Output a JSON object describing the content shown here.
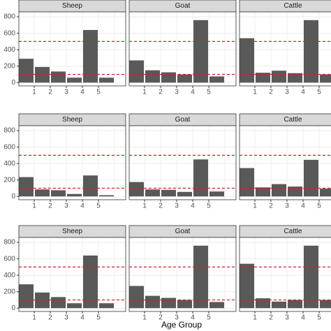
{
  "xlabel": "Age Group",
  "chart_data": [
    {
      "type": "bar",
      "title": "Sheep",
      "categories": [
        null,
        "1",
        "2",
        "3",
        "4",
        "5"
      ],
      "values": [
        290,
        190,
        135,
        60,
        640,
        60
      ],
      "color": "#595959",
      "ylim": [
        -40,
        860
      ],
      "yticks": [
        0,
        200,
        400,
        600,
        800
      ],
      "reference_lines": [
        100,
        500
      ],
      "reference_color": "#e41a1c",
      "grid": true
    },
    {
      "type": "bar",
      "title": "Goat",
      "categories": [
        null,
        "1",
        "2",
        "3",
        "4",
        "5"
      ],
      "values": [
        270,
        150,
        125,
        100,
        760,
        75
      ],
      "color": "#595959",
      "ylim": [
        -40,
        860
      ],
      "yticks": [
        0,
        200,
        400,
        600,
        800
      ],
      "reference_lines": [
        100,
        500
      ],
      "reference_color": "#e41a1c",
      "grid": true
    },
    {
      "type": "bar",
      "title": "Cattle",
      "categories": [
        null,
        "1",
        "2",
        "3",
        "4",
        "5"
      ],
      "values": [
        540,
        120,
        145,
        115,
        760,
        100
      ],
      "color": "#595959",
      "ylim": [
        -40,
        860
      ],
      "yticks": [
        0,
        200,
        400,
        600,
        800
      ],
      "reference_lines": [
        100,
        500
      ],
      "reference_color": "#e41a1c",
      "grid": true
    },
    {
      "type": "bar",
      "title": "Sheep",
      "categories": [
        null,
        "1",
        "2",
        "3",
        "4",
        "5"
      ],
      "values": [
        235,
        85,
        75,
        30,
        255,
        15
      ],
      "color": "#595959",
      "ylim": [
        -40,
        860
      ],
      "yticks": [
        0,
        200,
        400,
        600,
        800
      ],
      "reference_lines": [
        100,
        500
      ],
      "reference_color": "#e41a1c",
      "grid": true
    },
    {
      "type": "bar",
      "title": "Goat",
      "categories": [
        null,
        "1",
        "2",
        "3",
        "4",
        "5"
      ],
      "values": [
        175,
        85,
        80,
        55,
        450,
        60
      ],
      "color": "#595959",
      "ylim": [
        -40,
        860
      ],
      "yticks": [
        0,
        200,
        400,
        600,
        800
      ],
      "reference_lines": [
        100,
        500
      ],
      "reference_color": "#e41a1c",
      "grid": true
    },
    {
      "type": "bar",
      "title": "Cattle",
      "categories": [
        null,
        "1",
        "2",
        "3",
        "4",
        "5"
      ],
      "values": [
        345,
        110,
        150,
        120,
        445,
        95
      ],
      "color": "#595959",
      "ylim": [
        -40,
        860
      ],
      "yticks": [
        0,
        200,
        400,
        600,
        800
      ],
      "reference_lines": [
        100,
        500
      ],
      "reference_color": "#e41a1c",
      "grid": true
    },
    {
      "type": "bar",
      "title": "Sheep",
      "categories": [
        null,
        "1",
        "2",
        "3",
        "4",
        "5"
      ],
      "values": [
        290,
        190,
        135,
        60,
        640,
        60
      ],
      "color": "#595959",
      "ylim": [
        -40,
        860
      ],
      "yticks": [
        0,
        200,
        400,
        600,
        800
      ],
      "reference_lines": [
        100,
        500
      ],
      "reference_color": "#e41a1c",
      "grid": true
    },
    {
      "type": "bar",
      "title": "Goat",
      "categories": [
        null,
        "1",
        "2",
        "3",
        "4",
        "5"
      ],
      "values": [
        270,
        150,
        125,
        100,
        760,
        75
      ],
      "color": "#595959",
      "ylim": [
        -40,
        860
      ],
      "yticks": [
        0,
        200,
        400,
        600,
        800
      ],
      "reference_lines": [
        100,
        500
      ],
      "reference_color": "#e41a1c",
      "grid": true
    },
    {
      "type": "bar",
      "title": "Cattle",
      "categories": [
        null,
        "1",
        "2",
        "3",
        "4",
        "5"
      ],
      "values": [
        540,
        120,
        80,
        100,
        760,
        100
      ],
      "color": "#595959",
      "ylim": [
        -40,
        860
      ],
      "yticks": [
        0,
        200,
        400,
        600,
        800
      ],
      "reference_lines": [
        100,
        500
      ],
      "reference_color": "#e41a1c",
      "grid": true
    }
  ]
}
